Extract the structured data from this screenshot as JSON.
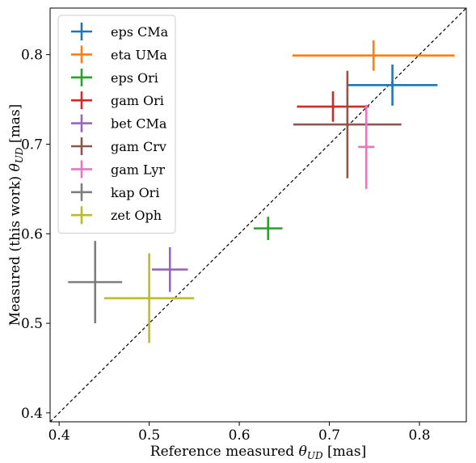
{
  "chart_data": {
    "type": "scatter",
    "title": "",
    "xlabel": "Reference measured θ_UD [mas]",
    "ylabel": "Measured (this work) θ_UD [mas]",
    "xlabel_parts": {
      "prefix": "Reference measured ",
      "theta": "θ",
      "sub": "UD",
      "suffix": " [mas]"
    },
    "ylabel_parts": {
      "prefix": "Measured (this work) ",
      "theta": "θ",
      "sub": "UD",
      "suffix": " [mas]"
    },
    "xlim": [
      0.39,
      0.852
    ],
    "ylim": [
      0.39,
      0.852
    ],
    "xticks": [
      0.4,
      0.5,
      0.6,
      0.7,
      0.8
    ],
    "yticks": [
      0.4,
      0.5,
      0.6,
      0.7,
      0.8
    ],
    "xtick_labels": [
      "0.4",
      "0.5",
      "0.6",
      "0.7",
      "0.8"
    ],
    "ytick_labels": [
      "0.4",
      "0.5",
      "0.6",
      "0.7",
      "0.8"
    ],
    "reference_line": "y = x",
    "grid": false,
    "legend_position": "upper-left",
    "series": [
      {
        "name": "eps CMa",
        "color": "#1f77b4",
        "x": 0.77,
        "y": 0.766,
        "xerr": [
          0.05,
          0.05
        ],
        "yerr": [
          0.023,
          0.023
        ]
      },
      {
        "name": "eta UMa",
        "color": "#ff7f0e",
        "x": 0.749,
        "y": 0.799,
        "xerr": [
          0.09,
          0.09
        ],
        "yerr": [
          0.017,
          0.017
        ]
      },
      {
        "name": "eps Ori",
        "color": "#2ca02c",
        "x": 0.632,
        "y": 0.606,
        "xerr": [
          0.016,
          0.016
        ],
        "yerr": [
          0.013,
          0.013
        ]
      },
      {
        "name": "gam Ori",
        "color": "#d62728",
        "x": 0.704,
        "y": 0.742,
        "xerr": [
          0.04,
          0.04
        ],
        "yerr": [
          0.017,
          0.017
        ]
      },
      {
        "name": "bet CMa",
        "color": "#9467bd",
        "x": 0.523,
        "y": 0.56,
        "xerr": [
          0.02,
          0.02
        ],
        "yerr": [
          0.025,
          0.025
        ]
      },
      {
        "name": "gam Crv",
        "color": "#8c564b",
        "x": 0.72,
        "y": 0.722,
        "xerr": [
          0.06,
          0.06
        ],
        "yerr": [
          0.06,
          0.06
        ]
      },
      {
        "name": "gam Lyr",
        "color": "#e377c2",
        "x": 0.741,
        "y": 0.697,
        "xerr": [
          0.009,
          0.009
        ],
        "yerr": [
          0.047,
          0.047
        ]
      },
      {
        "name": "kap Ori",
        "color": "#7f7f7f",
        "x": 0.44,
        "y": 0.546,
        "xerr": [
          0.03,
          0.03
        ],
        "yerr": [
          0.046,
          0.046
        ]
      },
      {
        "name": "zet Oph",
        "color": "#bcbd22",
        "x": 0.5,
        "y": 0.528,
        "xerr": [
          0.05,
          0.05
        ],
        "yerr": [
          0.05,
          0.05
        ]
      }
    ]
  }
}
